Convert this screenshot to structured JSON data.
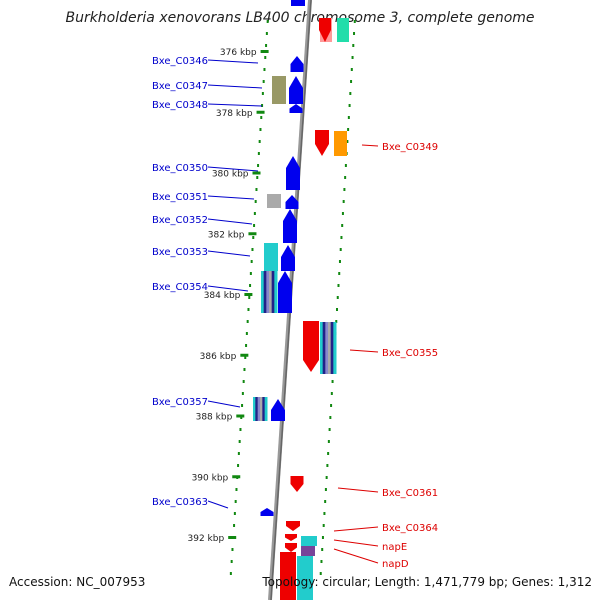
{
  "header": {
    "title": "Burkholderia xenovorans LB400 chromosome 3, complete genome"
  },
  "footer": {
    "accession": "Accession: NC_007953",
    "summary": "Topology: circular; Length: 1,471,779 bp; Genes: 1,312"
  },
  "ticks": [
    {
      "label": "376 kbp",
      "kbp": 376
    },
    {
      "label": "378 kbp",
      "kbp": 378
    },
    {
      "label": "380 kbp",
      "kbp": 380
    },
    {
      "label": "382 kbp",
      "kbp": 382
    },
    {
      "label": "384 kbp",
      "kbp": 384
    },
    {
      "label": "386 kbp",
      "kbp": 386
    },
    {
      "label": "388 kbp",
      "kbp": 388
    },
    {
      "label": "390 kbp",
      "kbp": 390
    },
    {
      "label": "392 kbp",
      "kbp": 392
    }
  ],
  "genes_left": [
    {
      "label": "Bxe_C0346"
    },
    {
      "label": "Bxe_C0347"
    },
    {
      "label": "Bxe_C0348"
    },
    {
      "label": "Bxe_C0350"
    },
    {
      "label": "Bxe_C0351"
    },
    {
      "label": "Bxe_C0352"
    },
    {
      "label": "Bxe_C0353"
    },
    {
      "label": "Bxe_C0354"
    },
    {
      "label": "Bxe_C0357"
    },
    {
      "label": "Bxe_C0363"
    }
  ],
  "genes_right": [
    {
      "label": "Bxe_C0349"
    },
    {
      "label": "Bxe_C0355"
    },
    {
      "label": "Bxe_C0361"
    },
    {
      "label": "Bxe_C0364"
    },
    {
      "label": "napE"
    },
    {
      "label": "napD"
    }
  ],
  "colors": {
    "forward_strand": "#0000ee",
    "reverse_strand": "#ee0000",
    "left_label": "#0000cc",
    "right_label": "#dd0000",
    "backbone": "#888888",
    "dots": "#118811",
    "olive": "#999966",
    "cyan": "#22cccc",
    "orange": "#ff9900",
    "grey": "#aaaaaa",
    "navy": "#222288"
  }
}
